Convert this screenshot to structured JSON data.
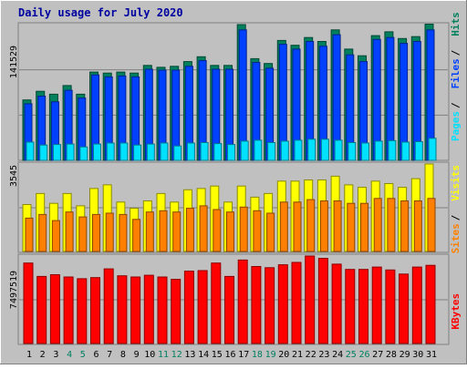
{
  "chart_data": {
    "title": "Daily usage for July 2020",
    "type": "bar",
    "categories": [
      "1",
      "2",
      "3",
      "4",
      "5",
      "6",
      "7",
      "8",
      "9",
      "10",
      "11",
      "12",
      "13",
      "14",
      "15",
      "16",
      "17",
      "18",
      "19",
      "20",
      "21",
      "22",
      "23",
      "24",
      "25",
      "26",
      "27",
      "28",
      "29",
      "30",
      "31"
    ],
    "weekend_days": [
      "4",
      "5",
      "11",
      "12",
      "18",
      "19",
      "25",
      "26"
    ],
    "panels": [
      {
        "id": "hits-files-pages",
        "max_label": "141529",
        "ylim": [
          0,
          141529
        ],
        "series": [
          {
            "name": "Hits",
            "color": "#00805c",
            "values": [
              63000,
              72000,
              69000,
              78000,
              69000,
              92000,
              91000,
              92000,
              91000,
              99000,
              97000,
              98000,
              103000,
              108000,
              99000,
              99000,
              141529,
              106000,
              101000,
              125000,
              120000,
              128000,
              124000,
              136000,
              116000,
              109000,
              130000,
              134000,
              127000,
              129000,
              142000
            ]
          },
          {
            "name": "Files",
            "color": "#0040ff",
            "values": [
              59000,
              67000,
              61000,
              73000,
              65000,
              89000,
              87000,
              88000,
              87000,
              95000,
              94000,
              94000,
              98000,
              104000,
              95000,
              95000,
              136000,
              102000,
              96000,
              121000,
              116000,
              124000,
              119000,
              131000,
              110000,
              103000,
              126000,
              128000,
              122000,
              124000,
              136000
            ]
          },
          {
            "name": "Pages",
            "color": "#00e0ff",
            "values": [
              19000,
              16000,
              16500,
              17000,
              14000,
              17000,
              18000,
              18000,
              16000,
              17000,
              18000,
              15000,
              18000,
              18500,
              17500,
              16500,
              20000,
              21000,
              18500,
              20000,
              21000,
              22000,
              22000,
              21000,
              18500,
              18000,
              20000,
              20500,
              19000,
              19500,
              23000
            ]
          }
        ]
      },
      {
        "id": "visits-sites",
        "max_label": "3545",
        "ylim": [
          0,
          3545
        ],
        "series": [
          {
            "name": "Visits",
            "color": "#ffff00",
            "values": [
              1900,
              2350,
              1950,
              2350,
              1850,
              2550,
              2700,
              2000,
              1750,
              2050,
              2350,
              2000,
              2500,
              2550,
              2650,
              2000,
              2650,
              2200,
              2350,
              2850,
              2850,
              2900,
              2900,
              3050,
              2700,
              2600,
              2850,
              2750,
              2600,
              2950,
              3545
            ]
          },
          {
            "name": "Sites",
            "color": "#ff8000",
            "values": [
              1350,
              1500,
              1250,
              1600,
              1400,
              1500,
              1550,
              1500,
              1300,
              1600,
              1650,
              1600,
              1750,
              1850,
              1700,
              1600,
              1800,
              1650,
              1550,
              2000,
              2000,
              2100,
              2050,
              2050,
              1950,
              1950,
              2150,
              2150,
              2050,
              2050,
              2150
            ]
          }
        ]
      },
      {
        "id": "kbytes",
        "max_label": "7497519",
        "ylim": [
          0,
          7497519
        ],
        "series": [
          {
            "name": "KBytes",
            "color": "#ff0000",
            "values": [
              6900000,
              5750000,
              5900000,
              5700000,
              5550000,
              5650000,
              6400000,
              5800000,
              5700000,
              5850000,
              5700000,
              5500000,
              6200000,
              6250000,
              6900000,
              5750000,
              7150000,
              6600000,
              6500000,
              6750000,
              6950000,
              7497519,
              7300000,
              6800000,
              6350000,
              6350000,
              6550000,
              6300000,
              5950000,
              6550000,
              6700000
            ]
          }
        ]
      }
    ]
  }
}
